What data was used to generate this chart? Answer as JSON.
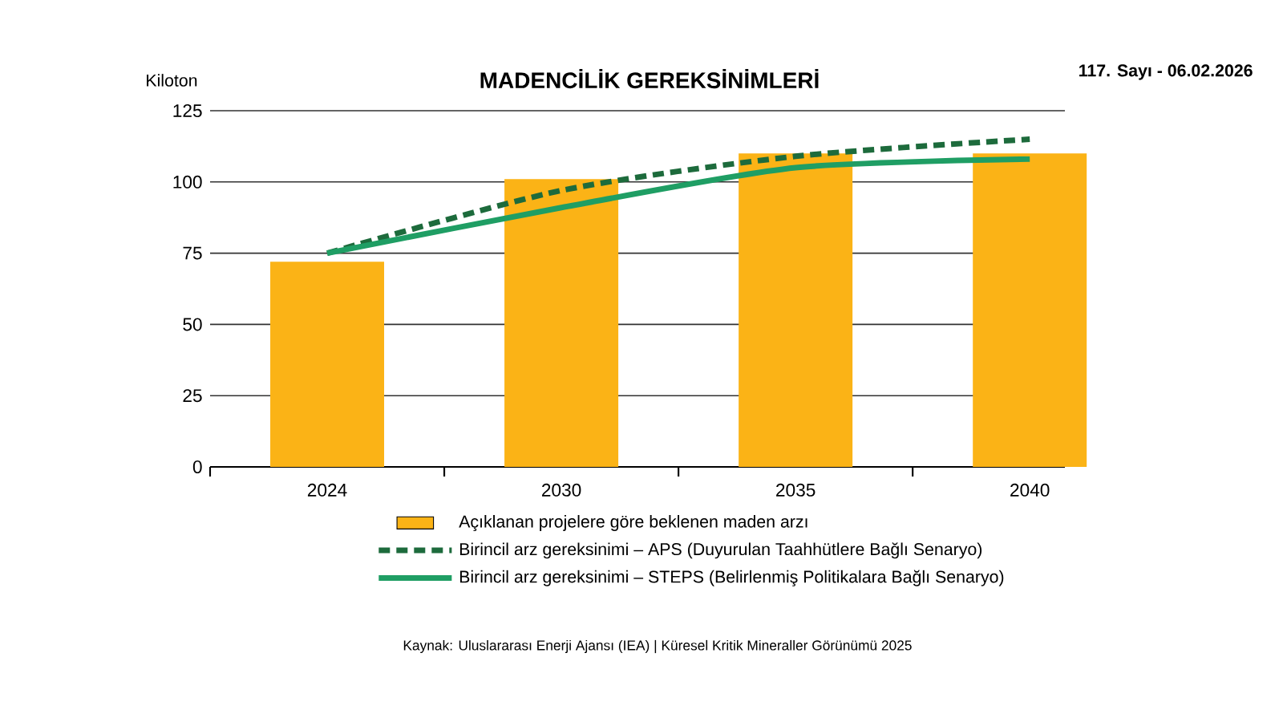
{
  "chart_data": {
    "type": "bar",
    "title": "MADENCİLİK GEREKSİNİMLERİ",
    "ylabel": "Kiloton",
    "categories": [
      "2024",
      "2030",
      "2035",
      "2040"
    ],
    "series": [
      {
        "name": "Açıklanan projelere göre beklenen maden arzı",
        "color": "#fbb316",
        "values": [
          72,
          101,
          110,
          110
        ]
      },
      {
        "name": "Birincil arz gereksinimi – APS (Duyurulan Taahhütlere Bağlı Senaryo)",
        "type": "line",
        "line_style": "dashed",
        "color": "#1d6b3c",
        "values": [
          75,
          97,
          109,
          115
        ]
      },
      {
        "name": "Birincil arz gereksinimi – STEPS (Belirlenmiş Politikalara Bağlı Senaryo)",
        "type": "line",
        "line_style": "solid",
        "color": "#1f9e64",
        "values": [
          75,
          91,
          105,
          108
        ]
      }
    ],
    "ylim": [
      0,
      125
    ],
    "yticks": [
      0,
      25,
      50,
      75,
      100,
      125
    ],
    "grid": "y",
    "legend": "bottom",
    "annotations": [
      "Kaynak: Uluslararası Enerji Ajansı (IEA) | Küresel Kritik Mineraller Görünümü 2025",
      "117. Sayı - 06.02.2026"
    ]
  }
}
